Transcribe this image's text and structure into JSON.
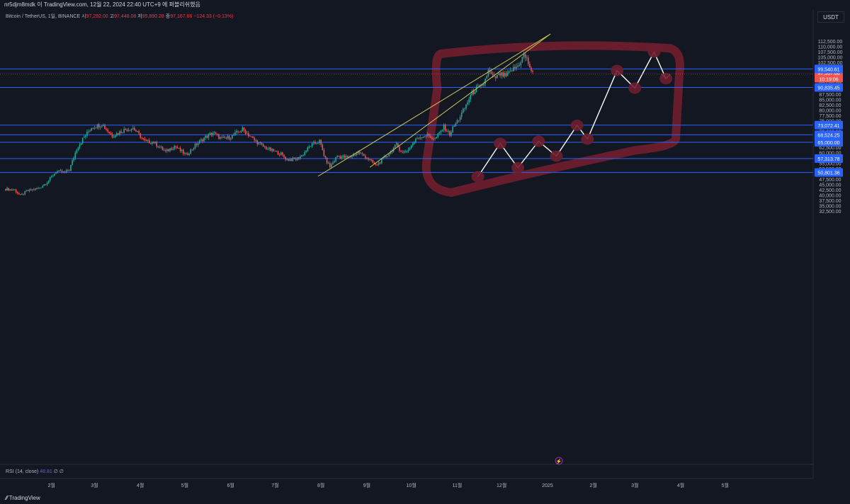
{
  "header": {
    "publish_text": "nr5djm8mdk 이 TradingView.com, 12월 22, 2024 22:40 UTC+9 에 퍼블리쉬했음"
  },
  "symbol": {
    "name": "Bitcoin / TetherUS, 1일, BINANCE",
    "open_label": "시",
    "open": "97,292.00",
    "high_label": "고",
    "high": "97,448.08",
    "low_label": "저",
    "low": "95,890.28",
    "close_label": "종",
    "close": "97,167.66",
    "change": "−124.33 (−0.13%)"
  },
  "rsi": {
    "label": "RSI (14, close)",
    "value": "48.81",
    "extra": "∅ ∅"
  },
  "currency": "USDT",
  "footer": {
    "brand": "TradingView"
  },
  "colors": {
    "bg": "#131722",
    "up": "#26a69a",
    "down": "#ef5350",
    "level": "#2962ff",
    "trend": "#c8c85a",
    "marker": "#6d1e2e",
    "projection": "#ffffff"
  },
  "chart_data": {
    "type": "candlestick",
    "y_scale": "linear",
    "ylim": [
      31500,
      115000
    ],
    "y_ticks": [
      "112,500.00",
      "110,000.00",
      "107,500.00",
      "105,000.00",
      "102,500.00",
      "100,000.00",
      "97,500.00",
      "95,000.00",
      "92,500.00",
      "90,000.00",
      "87,500.00",
      "85,000.00",
      "82,500.00",
      "80,000.00",
      "77,500.00",
      "75,000.00",
      "72,500.00",
      "70,000.00",
      "67,500.00",
      "65,000.00",
      "62,500.00",
      "60,000.00",
      "57,500.00",
      "55,000.00",
      "52,500.00",
      "50,000.00",
      "47,500.00",
      "45,000.00",
      "42,500.00",
      "40,000.00",
      "37,500.00",
      "35,000.00",
      "32,500.00"
    ],
    "x_ticks": [
      "2월",
      "3월",
      "4월",
      "5월",
      "6월",
      "7월",
      "8월",
      "9월",
      "10월",
      "11월",
      "12월",
      "2025",
      "2월",
      "3월",
      "4월",
      "5월"
    ],
    "x_tick_days": [
      31,
      60,
      91,
      121,
      152,
      182,
      213,
      244,
      274,
      305,
      335,
      366,
      397,
      425,
      456,
      486
    ],
    "last_price": {
      "value": 97167.66,
      "label": "97,167.66",
      "countdown": "10:19:06"
    },
    "horizontal_levels": [
      {
        "value": 99540.61,
        "label": "99,540.61"
      },
      {
        "value": 90835.45,
        "label": "90,835.45"
      },
      {
        "value": 73072.41,
        "label": "73,072.41"
      },
      {
        "value": 68524.25,
        "label": "68,524.25"
      },
      {
        "value": 65000.0,
        "label": "65,000.00"
      },
      {
        "value": 57313.78,
        "label": "57,313.78"
      },
      {
        "value": 50801.36,
        "label": "50,801.36"
      }
    ],
    "candle_path": {
      "day_range": [
        0,
        356
      ],
      "anchors": [
        [
          0,
          43000
        ],
        [
          6,
          42600
        ],
        [
          10,
          39800
        ],
        [
          14,
          42000
        ],
        [
          22,
          43200
        ],
        [
          28,
          46200
        ],
        [
          34,
          51200
        ],
        [
          40,
          50800
        ],
        [
          43,
          52000
        ],
        [
          48,
          62000
        ],
        [
          52,
          66500
        ],
        [
          58,
          72000
        ],
        [
          65,
          73500
        ],
        [
          72,
          68000
        ],
        [
          80,
          70800
        ],
        [
          86,
          71800
        ],
        [
          94,
          65400
        ],
        [
          100,
          65000
        ],
        [
          108,
          60500
        ],
        [
          114,
          63200
        ],
        [
          122,
          59000
        ],
        [
          128,
          63500
        ],
        [
          134,
          67000
        ],
        [
          140,
          69500
        ],
        [
          146,
          66500
        ],
        [
          152,
          67500
        ],
        [
          160,
          71200
        ],
        [
          168,
          66000
        ],
        [
          174,
          63000
        ],
        [
          180,
          61000
        ],
        [
          186,
          59500
        ],
        [
          190,
          56800
        ],
        [
          196,
          57000
        ],
        [
          200,
          58800
        ],
        [
          206,
          63500
        ],
        [
          212,
          65500
        ],
        [
          216,
          57000
        ],
        [
          219,
          53500
        ],
        [
          224,
          58500
        ],
        [
          232,
          57700
        ],
        [
          238,
          60300
        ],
        [
          244,
          57800
        ],
        [
          250,
          54100
        ],
        [
          254,
          56500
        ],
        [
          258,
          59000
        ],
        [
          264,
          63800
        ],
        [
          268,
          60000
        ],
        [
          272,
          61700
        ],
        [
          278,
          67000
        ],
        [
          284,
          68500
        ],
        [
          290,
          66500
        ],
        [
          296,
          72200
        ],
        [
          300,
          68800
        ],
        [
          302,
          71600
        ],
        [
          306,
          76000
        ],
        [
          310,
          81000
        ],
        [
          314,
          87000
        ],
        [
          318,
          90500
        ],
        [
          322,
          91000
        ],
        [
          326,
          98500
        ],
        [
          330,
          95000
        ],
        [
          334,
          97000
        ],
        [
          338,
          96000
        ],
        [
          342,
          99000
        ],
        [
          346,
          101000
        ],
        [
          350,
          106000
        ],
        [
          352,
          104000
        ],
        [
          356,
          97167
        ]
      ]
    },
    "trendlines": [
      {
        "from": [
          211,
          49000
        ],
        "to": [
          368,
          116000
        ]
      },
      {
        "from": [
          246,
          53200
        ],
        "to": [
          368,
          116000
        ]
      }
    ],
    "projection": [
      [
        319,
        48800
      ],
      [
        334,
        64500
      ],
      [
        346,
        53000
      ],
      [
        360,
        65500
      ],
      [
        372,
        58500
      ],
      [
        386,
        73000
      ],
      [
        393,
        66500
      ],
      [
        413,
        98800
      ],
      [
        425,
        90500
      ],
      [
        438,
        107500
      ],
      [
        446,
        95000
      ]
    ],
    "highlight_region": {
      "x_days": [
        282,
        455
      ],
      "y_values": [
        43000,
        110000
      ]
    },
    "markers": [
      [
        319,
        48800
      ],
      [
        334,
        64500
      ],
      [
        346,
        53000
      ],
      [
        360,
        65500
      ],
      [
        372,
        58500
      ],
      [
        386,
        73000
      ],
      [
        393,
        66500
      ],
      [
        413,
        98800
      ],
      [
        425,
        90500
      ],
      [
        438,
        107500
      ],
      [
        446,
        95000
      ]
    ]
  }
}
